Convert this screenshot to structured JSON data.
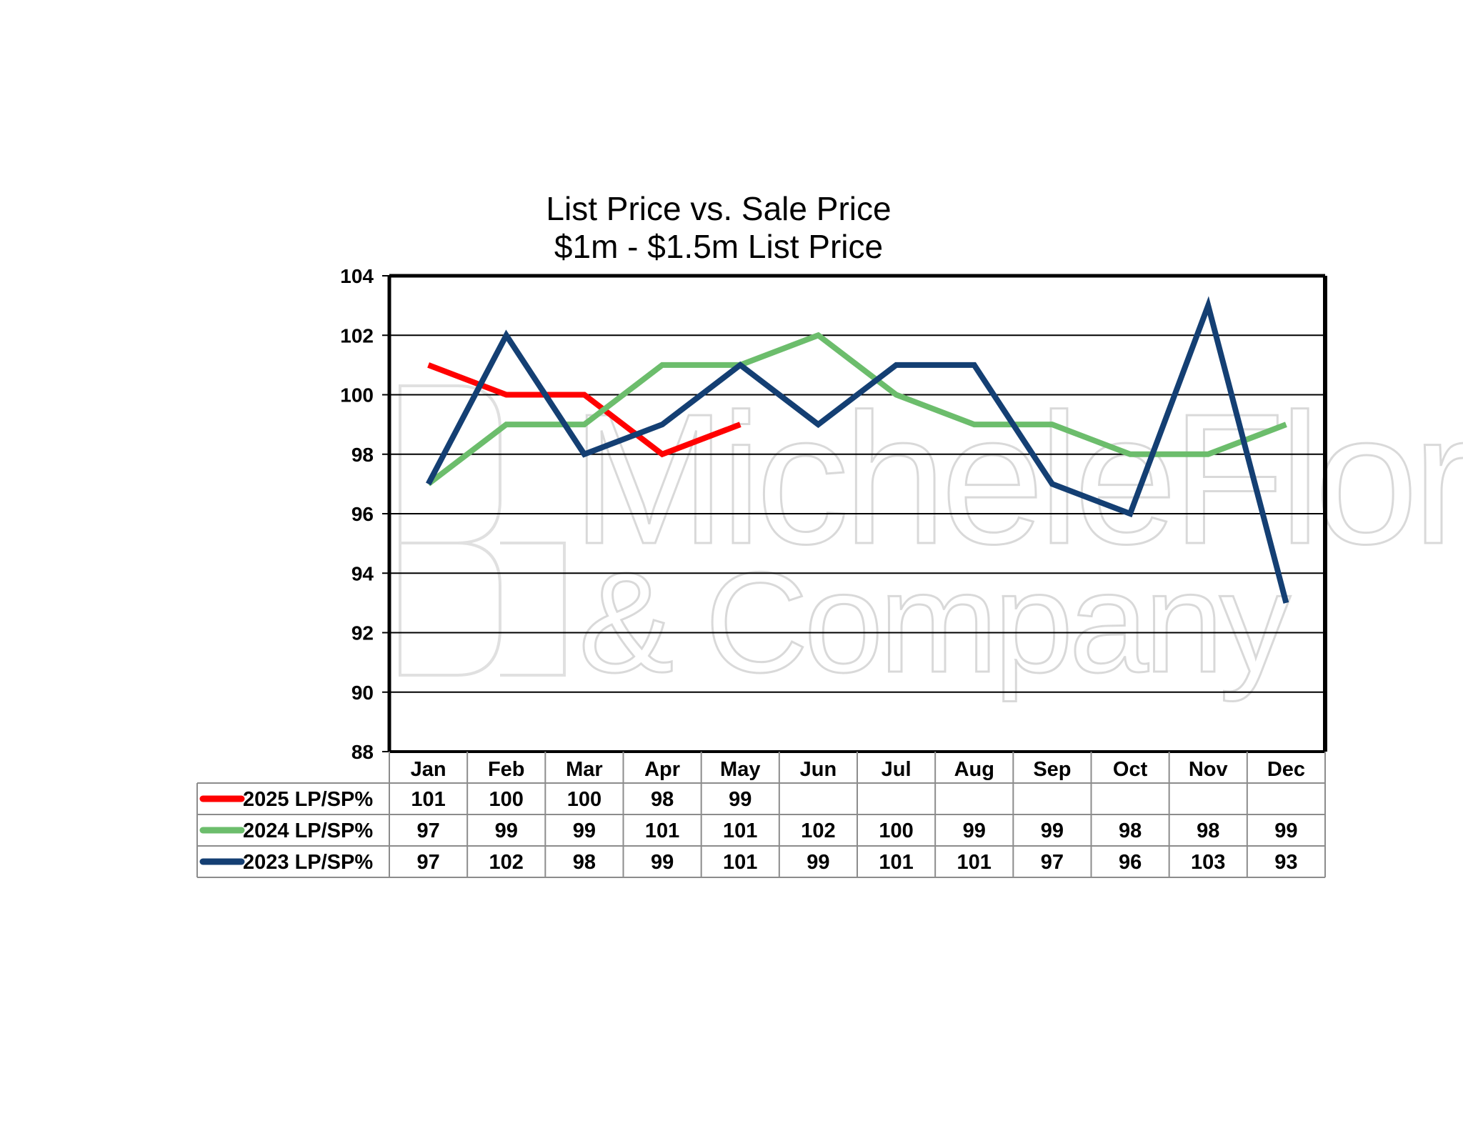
{
  "chart_data": {
    "type": "line",
    "title": [
      "List Price vs. Sale Price",
      "$1m - $1.5m List Price"
    ],
    "categories": [
      "Jan",
      "Feb",
      "Mar",
      "Apr",
      "May",
      "Jun",
      "Jul",
      "Aug",
      "Sep",
      "Oct",
      "Nov",
      "Dec"
    ],
    "ylim": [
      88,
      104
    ],
    "yticks": [
      88,
      90,
      92,
      94,
      96,
      98,
      100,
      102,
      104
    ],
    "grid": true,
    "legend": "data-table-below",
    "series": [
      {
        "name": "2025 LP/SP%",
        "color": "#ff0000",
        "values": [
          101,
          100,
          100,
          98,
          99,
          null,
          null,
          null,
          null,
          null,
          null,
          null
        ]
      },
      {
        "name": "2024 LP/SP%",
        "color": "#6cbd6c",
        "values": [
          97,
          99,
          99,
          101,
          101,
          102,
          100,
          99,
          99,
          98,
          98,
          99
        ]
      },
      {
        "name": "2023 LP/SP%",
        "color": "#143f73",
        "values": [
          97,
          102,
          98,
          99,
          101,
          99,
          101,
          101,
          97,
          96,
          103,
          93
        ]
      }
    ]
  },
  "watermark": {
    "line1": "MicheleFlory",
    "line2": "& Company"
  }
}
